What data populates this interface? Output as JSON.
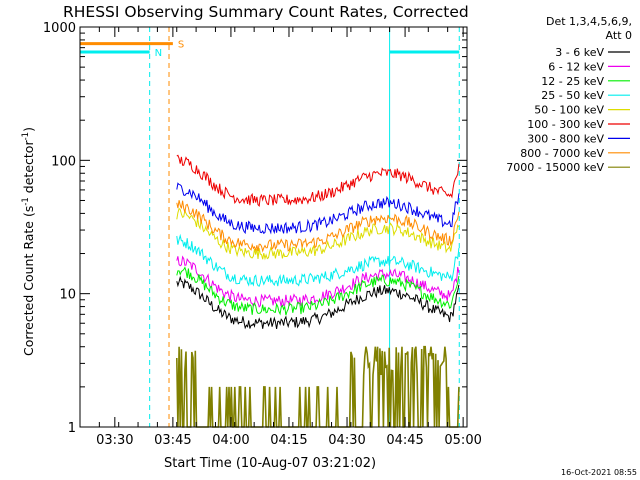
{
  "chart_data": {
    "type": "line",
    "title": "RHESSI Observing Summary Count Rates, Corrected",
    "xlabel": "Start Time (10-Aug-07 03:21:02)",
    "ylabel_main": "Corrected Count Rate (s",
    "ylabel_sup": "-1",
    "ylabel_mid": " detector",
    "ylabel_sup2": "-1",
    "ylabel_end": ")",
    "y_scale": "log",
    "ylim": [
      1,
      1000
    ],
    "xlim_minutes": [
      0,
      100
    ],
    "x_ticks": [
      {
        "label": "03:30",
        "m": 9
      },
      {
        "label": "03:45",
        "m": 24
      },
      {
        "label": "04:00",
        "m": 39
      },
      {
        "label": "04:15",
        "m": 54
      },
      {
        "label": "04:30",
        "m": 69
      },
      {
        "label": "04:45",
        "m": 84
      },
      {
        "label": "05:00",
        "m": 99
      }
    ],
    "y_ticks": [
      {
        "label": "1",
        "v": 1
      },
      {
        "label": "10",
        "v": 10
      },
      {
        "label": "100",
        "v": 100
      },
      {
        "label": "1000",
        "v": 1000
      }
    ],
    "legend_header": [
      "Det 1,3,4,5,6,9,",
      "Att 0"
    ],
    "legend_placement": "right",
    "series": [
      {
        "name": "3 - 6 keV",
        "color": "#000000",
        "base": 6.0,
        "peak": 10.5,
        "start": 25
      },
      {
        "name": "6 - 12 keV",
        "color": "#ee00ee",
        "base": 8.8,
        "peak": 14,
        "start": 25
      },
      {
        "name": "12 - 25 keV",
        "color": "#00ee00",
        "base": 7.6,
        "peak": 12.5,
        "start": 25
      },
      {
        "name": "25 - 50 keV",
        "color": "#00eeee",
        "base": 12.5,
        "peak": 17.5,
        "start": 25
      },
      {
        "name": "50 - 100 keV",
        "color": "#dddd00",
        "base": 20,
        "peak": 31,
        "start": 25
      },
      {
        "name": "100 - 300 keV",
        "color": "#ee0000",
        "base": 50,
        "peak": 80,
        "start": 25
      },
      {
        "name": "300 - 800 keV",
        "color": "#0000ee",
        "base": 31,
        "peak": 48,
        "start": 25
      },
      {
        "name": "800 - 7000 keV",
        "color": "#ff8c00",
        "base": 23,
        "peak": 37,
        "start": 25
      },
      {
        "name": "7000 - 15000 keV",
        "color": "#808000",
        "base": 1,
        "peak": 3.5,
        "start": 25
      }
    ],
    "flags": [
      {
        "label": "S",
        "color": "#ff8c00",
        "y_value": 750,
        "x0": 0,
        "x1": 24
      },
      {
        "label": "N",
        "color": "#00eeee",
        "y_value": 650,
        "x0": 0,
        "x1": 18
      },
      {
        "label": "",
        "color": "#00eeee",
        "y_value": 650,
        "x0": 80,
        "x1": 98
      }
    ],
    "vlines": [
      {
        "m": 18,
        "color": "#00eeee",
        "style": "dashed"
      },
      {
        "m": 23,
        "color": "#ff8c00",
        "style": "dashed"
      },
      {
        "m": 80,
        "color": "#00eeee",
        "style": "solid"
      },
      {
        "m": 98,
        "color": "#00eeee",
        "style": "dashed"
      }
    ]
  },
  "footer": {
    "timestamp": "16-Oct-2021 08:55"
  }
}
